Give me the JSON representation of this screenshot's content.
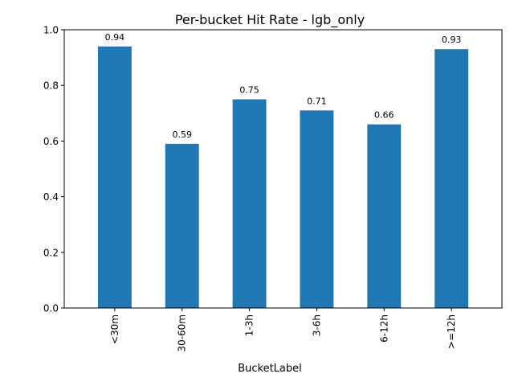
{
  "chart_data": {
    "type": "bar",
    "title": "Per-bucket Hit Rate - lgb_only",
    "xlabel": "BucketLabel",
    "ylabel": "",
    "categories": [
      "<30m",
      "30-60m",
      "1-3h",
      "3-6h",
      "6-12h",
      ">=12h"
    ],
    "values": [
      0.94,
      0.59,
      0.75,
      0.71,
      0.66,
      0.93
    ],
    "value_labels": [
      "0.94",
      "0.59",
      "0.75",
      "0.71",
      "0.66",
      "0.93"
    ],
    "ylim": [
      0,
      1
    ],
    "yticks": [
      0.0,
      0.2,
      0.4,
      0.6,
      0.8,
      1.0
    ],
    "ytick_labels": [
      "0.0",
      "0.2",
      "0.4",
      "0.6",
      "0.8",
      "1.0"
    ],
    "bar_color": "#1f77b4",
    "grid": false,
    "legend": "none"
  }
}
